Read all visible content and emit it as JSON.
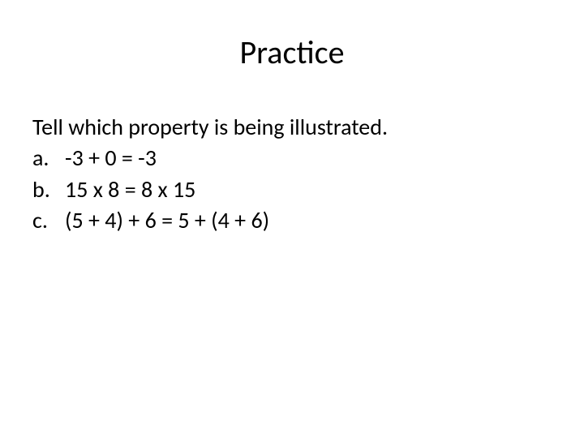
{
  "slide": {
    "title": "Practice",
    "instruction": "Tell which property is being illustrated.",
    "items": [
      {
        "label": "a.",
        "text": "-3 + 0 = -3"
      },
      {
        "label": "b.",
        "text": "15 x 8 = 8 x 15"
      },
      {
        "label": "c.",
        "text": "(5 + 4) + 6 = 5 + (4 + 6)"
      }
    ],
    "styling": {
      "background_color": "#ffffff",
      "text_color": "#000000",
      "title_fontsize": 40,
      "body_fontsize": 28,
      "font_family": "Calibri"
    }
  }
}
